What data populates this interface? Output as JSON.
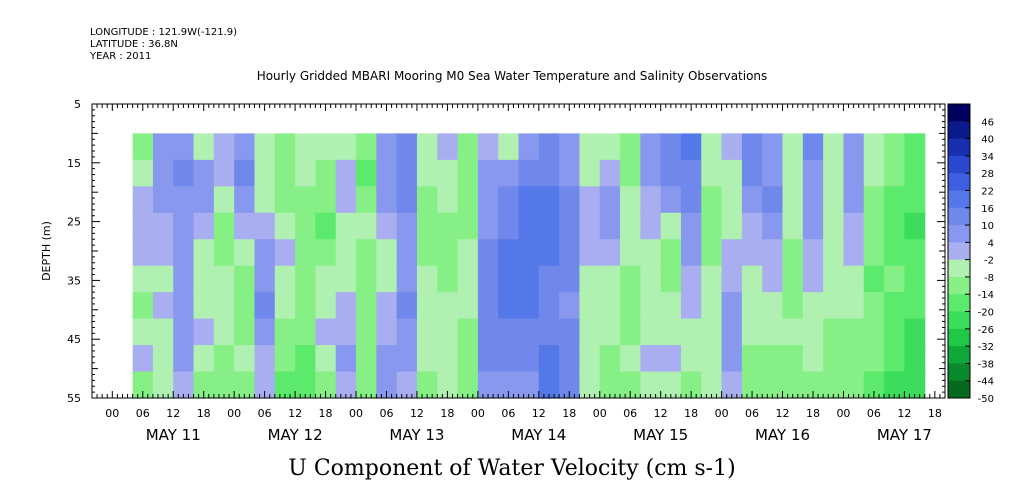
{
  "header": {
    "longitude": "LONGITUDE : 121.9W(-121.9)",
    "latitude": "LATITUDE : 36.8N",
    "year": "YEAR : 2011"
  },
  "chart_data": {
    "type": "heatmap",
    "title": "Hourly Gridded MBARI Mooring M0 Sea Water Temperature and Salinity Observations",
    "xlabel": "U Component of Water Velocity (cm s-1)",
    "ylabel": "DEPTH (m)",
    "x_hour_ticks": [
      "00",
      "06",
      "12",
      "18",
      "00",
      "06",
      "12",
      "18",
      "00",
      "06",
      "12",
      "18",
      "00",
      "06",
      "12",
      "18",
      "00",
      "06",
      "12",
      "18",
      "00",
      "06",
      "12",
      "18",
      "00",
      "06",
      "12",
      "18"
    ],
    "x_day_labels": [
      "MAY 11",
      "MAY 12",
      "MAY 13",
      "MAY 14",
      "MAY 15",
      "MAY 16",
      "MAY 17"
    ],
    "x_range_hours": [
      -4,
      164
    ],
    "y_ticks": [
      5,
      15,
      25,
      35,
      45,
      55
    ],
    "ylim": [
      5,
      55
    ],
    "y_reversed": true,
    "data_depth_range": [
      10,
      55
    ],
    "data_time_range_hours": [
      4,
      160
    ],
    "colorbar": {
      "levels": [
        -50,
        -44,
        -38,
        -32,
        -26,
        -20,
        -14,
        -8,
        -2,
        4,
        10,
        16,
        22,
        28,
        34,
        40,
        46,
        52
      ],
      "labels": [
        "46",
        "40",
        "34",
        "28",
        "22",
        "16",
        "10",
        "4",
        "-2",
        "-8",
        "-14",
        "-20",
        "-26",
        "-32",
        "-38",
        "-44",
        "-50"
      ],
      "colors": [
        "#000060",
        "#0a1a8a",
        "#1830b0",
        "#2a48d0",
        "#3c60e0",
        "#5578e8",
        "#7088ec",
        "#8898ee",
        "#a8aef0",
        "#b0f0b0",
        "#86f086",
        "#5cea6c",
        "#3cdc5c",
        "#20c848",
        "#10a838",
        "#0a8a2c",
        "#056a20"
      ]
    },
    "columns": [
      {
        "t": 4,
        "v": [
          -10,
          -6,
          -2,
          2,
          -2,
          -8,
          -12,
          -6,
          -2,
          -10
        ]
      },
      {
        "t": 8,
        "v": [
          6,
          8,
          4,
          2,
          0,
          -4,
          -2,
          -4,
          -6,
          -8
        ]
      },
      {
        "t": 12,
        "v": [
          8,
          10,
          8,
          6,
          4,
          6,
          8,
          6,
          4,
          -2
        ]
      },
      {
        "t": 16,
        "v": [
          -4,
          6,
          4,
          -2,
          -6,
          -8,
          -4,
          -2,
          -6,
          -10
        ]
      },
      {
        "t": 20,
        "v": [
          2,
          -2,
          -8,
          -12,
          -10,
          -8,
          -6,
          -8,
          -10,
          -14
        ]
      },
      {
        "t": 24,
        "v": [
          8,
          10,
          6,
          -2,
          -8,
          -12,
          -14,
          -10,
          -8,
          -12
        ]
      },
      {
        "t": 28,
        "v": [
          -4,
          -8,
          -4,
          2,
          6,
          8,
          10,
          6,
          2,
          -2
        ]
      },
      {
        "t": 32,
        "v": [
          -12,
          -14,
          -10,
          -6,
          -2,
          -4,
          -8,
          -10,
          -12,
          -16
        ]
      },
      {
        "t": 36,
        "v": [
          -6,
          -8,
          -10,
          -12,
          -14,
          -12,
          -10,
          -12,
          -16,
          -18
        ]
      },
      {
        "t": 40,
        "v": [
          -8,
          -10,
          -14,
          -16,
          -12,
          -8,
          -4,
          -2,
          -6,
          -10
        ]
      },
      {
        "t": 44,
        "v": [
          -4,
          2,
          -2,
          -6,
          -8,
          -4,
          -2,
          2,
          4,
          -2
        ]
      },
      {
        "t": 48,
        "v": [
          -14,
          -16,
          -12,
          -8,
          -10,
          -12,
          -14,
          -12,
          -10,
          -14
        ]
      },
      {
        "t": 52,
        "v": [
          6,
          8,
          4,
          -2,
          -6,
          -4,
          -2,
          2,
          4,
          6
        ]
      },
      {
        "t": 56,
        "v": [
          10,
          14,
          12,
          8,
          6,
          8,
          10,
          8,
          6,
          2
        ]
      },
      {
        "t": 60,
        "v": [
          -6,
          -8,
          -12,
          -14,
          -10,
          -6,
          -4,
          -6,
          -8,
          -10
        ]
      },
      {
        "t": 64,
        "v": [
          -2,
          -6,
          -8,
          -10,
          -12,
          -10,
          -8,
          -6,
          -4,
          -6
        ]
      },
      {
        "t": 68,
        "v": [
          -10,
          -12,
          -14,
          -12,
          -8,
          -6,
          -8,
          -10,
          -12,
          -14
        ]
      },
      {
        "t": 72,
        "v": [
          2,
          4,
          6,
          8,
          10,
          12,
          14,
          12,
          10,
          6
        ]
      },
      {
        "t": 76,
        "v": [
          -6,
          6,
          10,
          14,
          16,
          18,
          16,
          14,
          10,
          6
        ]
      },
      {
        "t": 80,
        "v": [
          8,
          12,
          16,
          20,
          20,
          18,
          16,
          14,
          12,
          8
        ]
      },
      {
        "t": 84,
        "v": [
          10,
          14,
          18,
          18,
          16,
          14,
          12,
          14,
          16,
          18
        ]
      },
      {
        "t": 88,
        "v": [
          4,
          8,
          12,
          14,
          12,
          10,
          8,
          10,
          12,
          14
        ]
      },
      {
        "t": 92,
        "v": [
          -4,
          -6,
          -2,
          2,
          -2,
          -6,
          -8,
          -6,
          -4,
          -8
        ]
      },
      {
        "t": 96,
        "v": [
          -6,
          -2,
          4,
          6,
          2,
          -4,
          -6,
          -8,
          -10,
          -12
        ]
      },
      {
        "t": 100,
        "v": [
          -10,
          -12,
          -8,
          -4,
          -6,
          -10,
          -12,
          -10,
          -8,
          -12
        ]
      },
      {
        "t": 104,
        "v": [
          6,
          4,
          2,
          -2,
          -6,
          -8,
          -6,
          -4,
          -2,
          -4
        ]
      },
      {
        "t": 108,
        "v": [
          14,
          10,
          4,
          -4,
          -10,
          -12,
          -8,
          -4,
          -2,
          -6
        ]
      },
      {
        "t": 112,
        "v": [
          18,
          14,
          10,
          6,
          4,
          2,
          -2,
          -6,
          -8,
          -10
        ]
      },
      {
        "t": 116,
        "v": [
          -4,
          -8,
          -10,
          -12,
          -10,
          -8,
          -6,
          -4,
          -6,
          -8
        ]
      },
      {
        "t": 120,
        "v": [
          -2,
          -6,
          -8,
          -6,
          -2,
          2,
          6,
          8,
          6,
          2
        ]
      },
      {
        "t": 124,
        "v": [
          12,
          10,
          6,
          2,
          -2,
          -4,
          -6,
          -8,
          -10,
          -12
        ]
      },
      {
        "t": 128,
        "v": [
          4,
          8,
          10,
          6,
          2,
          -2,
          -6,
          -8,
          -10,
          -12
        ]
      },
      {
        "t": 132,
        "v": [
          -6,
          -4,
          -6,
          -8,
          -10,
          -12,
          -10,
          -8,
          -10,
          -14
        ]
      },
      {
        "t": 136,
        "v": [
          10,
          8,
          6,
          4,
          2,
          -2,
          -4,
          -6,
          -8,
          -10
        ]
      },
      {
        "t": 140,
        "v": [
          -4,
          -6,
          -8,
          -6,
          -4,
          -6,
          -8,
          -10,
          -12,
          -14
        ]
      },
      {
        "t": 144,
        "v": [
          8,
          6,
          4,
          2,
          -2,
          -6,
          -8,
          -10,
          -12,
          -14
        ]
      },
      {
        "t": 148,
        "v": [
          -6,
          -8,
          -10,
          -12,
          -14,
          -16,
          -14,
          -12,
          -14,
          -18
        ]
      },
      {
        "t": 152,
        "v": [
          -12,
          -14,
          -16,
          -18,
          -16,
          -14,
          -16,
          -18,
          -20,
          -22
        ]
      },
      {
        "t": 156,
        "v": [
          -16,
          -18,
          -20,
          -22,
          -20,
          -18,
          -20,
          -22,
          -24,
          -26
        ]
      }
    ]
  }
}
